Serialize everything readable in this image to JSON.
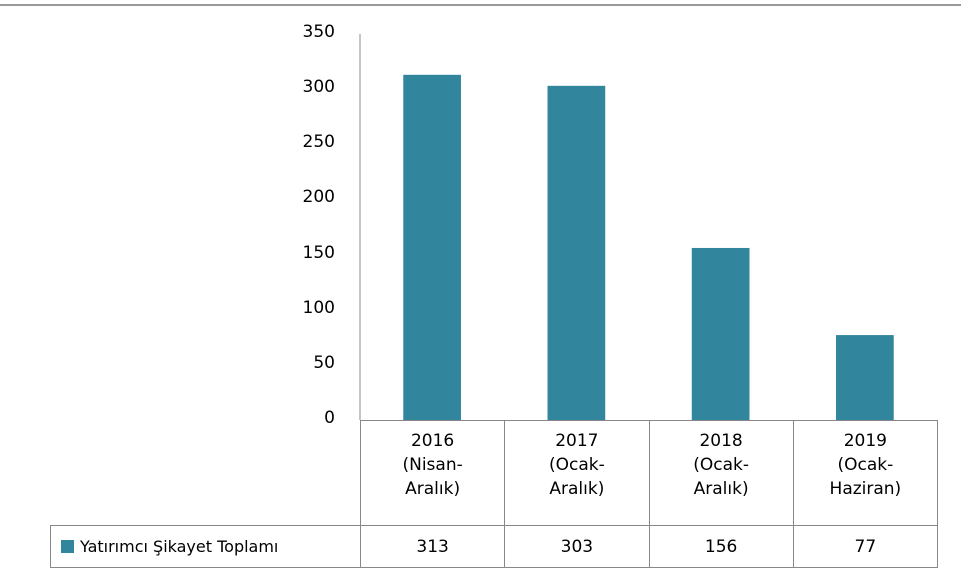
{
  "chart_data": {
    "type": "bar",
    "categories": [
      "2016 (Nisan-Aralık)",
      "2017 (Ocak-Aralık)",
      "2018 (Ocak-Aralık)",
      "2019 (Ocak-Haziran)"
    ],
    "series": [
      {
        "name": "Yatırımcı Şikayet Toplamı",
        "color": "#31859c",
        "values": [
          313,
          303,
          156,
          77
        ]
      }
    ],
    "ylim": [
      0,
      350
    ],
    "yticks": [
      0,
      50,
      100,
      150,
      200,
      250,
      300,
      350
    ],
    "grid": false
  }
}
